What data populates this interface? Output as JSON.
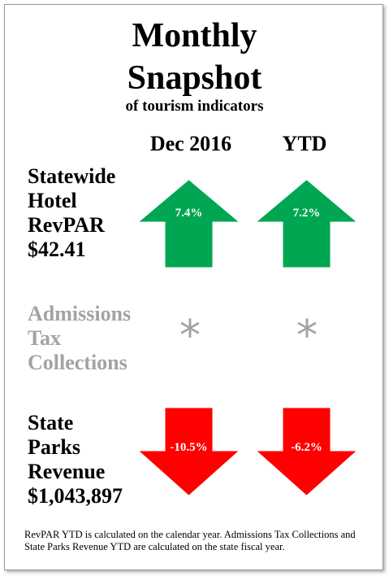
{
  "title": {
    "line1": "Monthly",
    "line2": "Snapshot",
    "subtitle": "of tourism indicators"
  },
  "columns": {
    "period": "Dec 2016",
    "ytd": "YTD"
  },
  "rows": [
    {
      "label_lines": [
        "Statewide",
        "Hotel",
        "RevPAR",
        "$42.41"
      ],
      "period": {
        "direction": "up",
        "value": "7.4%",
        "color": "#00a651"
      },
      "ytd": {
        "direction": "up",
        "value": "7.2%",
        "color": "#00a651"
      }
    },
    {
      "label_lines": [
        "Admissions",
        "Tax",
        "Collections"
      ],
      "label_color": "#a3a3a3",
      "period": {
        "marker": "*"
      },
      "ytd": {
        "marker": "*"
      }
    },
    {
      "label_lines": [
        "State",
        "Parks",
        "Revenue",
        "$1,043,897"
      ],
      "period": {
        "direction": "down",
        "value": "-10.5%",
        "color": "#ff0000"
      },
      "ytd": {
        "direction": "down",
        "value": "-6.2%",
        "color": "#ff0000"
      }
    }
  ],
  "footnote": "RevPAR YTD is calculated on the calendar year. Admissions Tax Collections and State Parks Revenue YTD are calculated on the state fiscal year."
}
